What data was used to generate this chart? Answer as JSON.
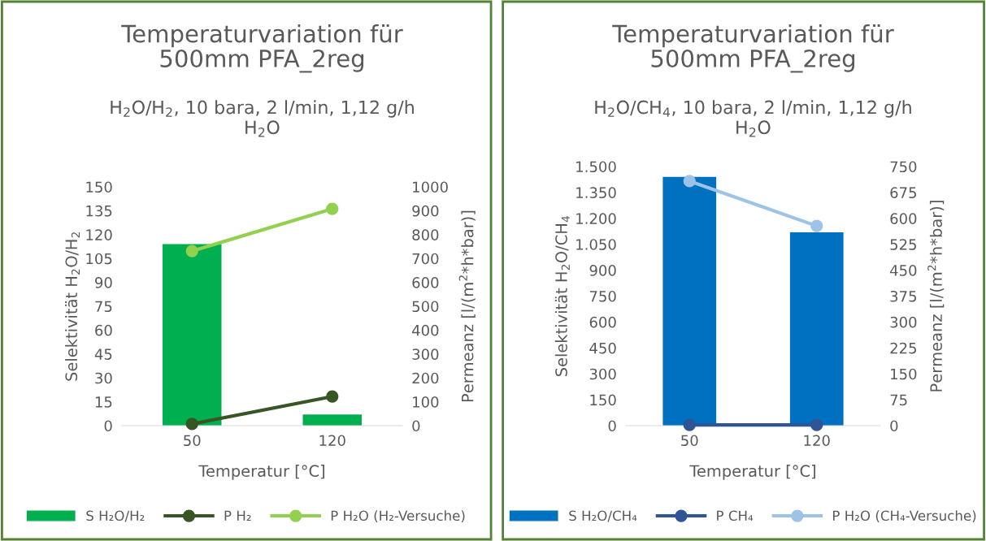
{
  "chart_data": [
    {
      "type": "bar",
      "title": "Temperaturvariation für\n500mm PFA_2reg",
      "subtitle": "H$_{2}$O/H$_{2}$, 10 bara, 2 l/min, 1,12 g/h\nH$_{2}$O",
      "xlabel": "Temperatur [°C]",
      "ylabel": "Selektivität H$_{2}$O/H$_{2}$",
      "y2label": "Permeanz [l/(m$^{2}$*h*bar)]",
      "categories": [
        "50",
        "120"
      ],
      "series": [
        {
          "name": "S H₂O/H₂",
          "color": "#00b050",
          "values": [
            114,
            7
          ]
        },
        {
          "name": "P H₂",
          "type": "line",
          "axis": "y2",
          "color": "#375623",
          "values": [
            7,
            122
          ]
        },
        {
          "name": "P H₂O (H₂-Versuche)",
          "type": "line",
          "axis": "y2",
          "color": "#92d050",
          "values": [
            731,
            908
          ]
        }
      ],
      "ylim": [
        0,
        150
      ],
      "yticks": [
        0,
        15,
        30,
        45,
        60,
        75,
        90,
        105,
        120,
        135,
        150
      ],
      "y2lim": [
        0,
        1000
      ],
      "y2ticks": [
        0,
        100,
        200,
        300,
        400,
        500,
        600,
        700,
        800,
        900,
        1000
      ],
      "marker": "circle",
      "grid": false,
      "legend": "bottom"
    },
    {
      "type": "bar",
      "title": "Temperaturvariation für\n500mm PFA_2reg",
      "subtitle": "H$_{2}$O/CH$_{4}$, 10 bara, 2 l/min, 1,12 g/h\nH$_{2}$O",
      "xlabel": "Temperatur [°C]",
      "ylabel": "Selektivität H$_{2}$O/CH$_{4}$",
      "y2label": "Permeanz [l/(m$^{2}$*h*bar)]",
      "categories": [
        "50",
        "120"
      ],
      "series": [
        {
          "name": "S H₂O/CH₄",
          "color": "#0070c0",
          "values": [
            1440,
            1119
          ]
        },
        {
          "name": "P CH₄",
          "type": "line",
          "axis": "y2",
          "color": "#2f5597",
          "values": [
            2,
            2
          ]
        },
        {
          "name": "P H₂O (CH₄-Versuche)",
          "type": "line",
          "axis": "y2",
          "color": "#9dc3e6",
          "values": [
            708,
            578
          ]
        }
      ],
      "ylim": [
        0,
        1500
      ],
      "yticks": [
        0,
        150,
        300,
        450,
        600,
        750,
        900,
        {
          "value": 1050,
          "label": "1.050"
        },
        {
          "value": 1200,
          "label": "1.200"
        },
        {
          "value": 1350,
          "label": "1.350"
        },
        {
          "value": 1500,
          "label": "1.500"
        }
      ],
      "y2lim": [
        0,
        750
      ],
      "y2ticks": [
        0,
        75,
        150,
        225,
        300,
        375,
        450,
        525,
        600,
        675,
        750
      ],
      "marker": "circle",
      "grid": false,
      "legend": "bottom"
    }
  ]
}
